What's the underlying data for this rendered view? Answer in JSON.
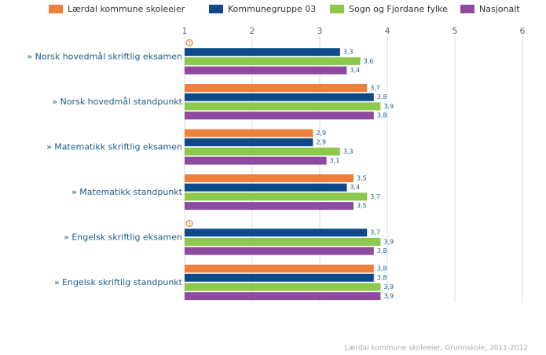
{
  "chart_data": {
    "type": "hbar",
    "categories": [
      "» Norsk hovedmål skriftlig eksamen",
      "» Norsk hovedmål standpunkt",
      "» Matematikk skriftlig eksamen",
      "» Matematikk standpunkt",
      "» Engelsk skriftlig eksamen",
      "» Engelsk skriftlig standpunkt"
    ],
    "series": [
      {
        "name": "Lærdal kommune skoleeier",
        "color": "#f07f3c",
        "values": [
          null,
          3.7,
          2.9,
          3.5,
          null,
          3.8
        ],
        "value_labels": [
          null,
          "3,7",
          "2,9",
          "3,5",
          null,
          "3,8"
        ]
      },
      {
        "name": "Kommunegruppe 03",
        "color": "#0c4a8c",
        "values": [
          3.3,
          3.8,
          2.9,
          3.4,
          3.7,
          3.8
        ],
        "value_labels": [
          "3,3",
          "3,8",
          "2,9",
          "3,4",
          "3,7",
          "3,8"
        ]
      },
      {
        "name": "Sogn og Fjordane fylke",
        "color": "#8cc84b",
        "values": [
          3.6,
          3.9,
          3.3,
          3.7,
          3.9,
          3.9
        ],
        "value_labels": [
          "3,6",
          "3,9",
          "3,3",
          "3,7",
          "3,9",
          "3,9"
        ]
      },
      {
        "name": "Nasjonalt",
        "color": "#8e4a9e",
        "values": [
          3.4,
          3.8,
          3.1,
          3.5,
          3.8,
          3.9
        ],
        "value_labels": [
          "3,4",
          "3,8",
          "3,1",
          "3,5",
          "3,8",
          "3,9"
        ]
      }
    ],
    "xlim": [
      1,
      6
    ],
    "xticks": [
      1,
      2,
      3,
      4,
      5,
      6
    ],
    "grid": true,
    "source": "Lærdal kommune skoleeier, Grunnskole, 2011-2012"
  }
}
